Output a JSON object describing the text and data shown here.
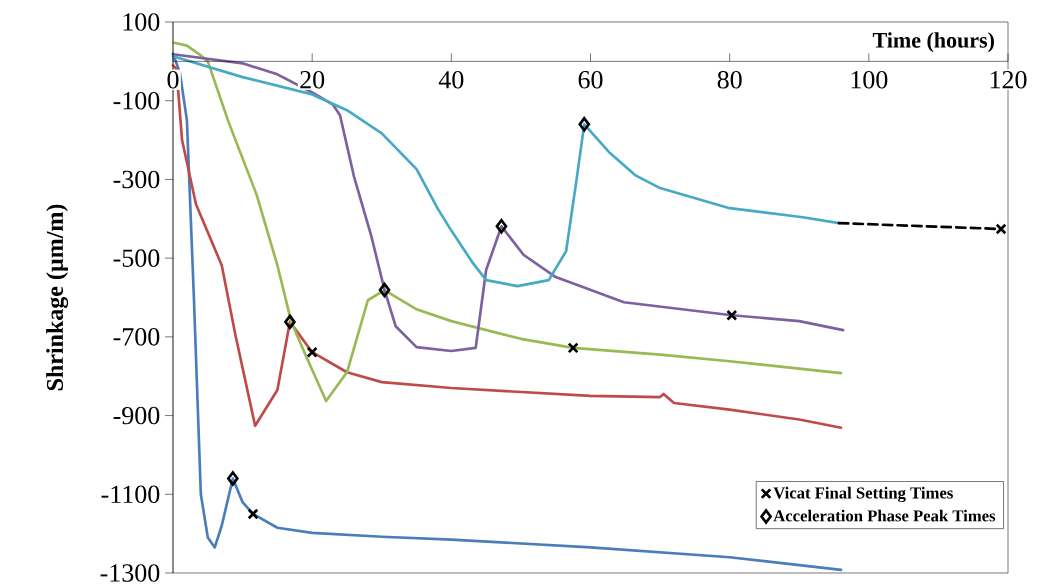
{
  "chart_data": {
    "type": "line",
    "xlabel": "Time (hours)",
    "ylabel": "Shrinkage (µm/m)",
    "xlim": [
      0,
      120
    ],
    "ylim": [
      -1300,
      100
    ],
    "xticks": [
      0,
      20,
      40,
      60,
      80,
      100,
      120
    ],
    "yticks": [
      100,
      -100,
      -300,
      -500,
      -700,
      -900,
      -1100,
      -1300
    ],
    "legend": "bottom right",
    "marker": "none",
    "series": [
      {
        "color": "#4a7ebb",
        "x": [
          0,
          1,
          2,
          3,
          4,
          5,
          6,
          7,
          8.6,
          10,
          11.5,
          15,
          20,
          30,
          40,
          60,
          80,
          96
        ],
        "values": [
          20,
          -30,
          -150,
          -600,
          -1100,
          -1210,
          -1235,
          -1180,
          -1060,
          -1120,
          -1150,
          -1185,
          -1198,
          -1208,
          -1215,
          -1235,
          -1260,
          -1292
        ]
      },
      {
        "color": "#be4b48",
        "x": [
          0,
          0.5,
          1.3,
          3.3,
          7,
          9,
          11.8,
          15,
          16.8,
          20,
          25,
          30,
          40,
          60,
          70,
          70.5,
          72,
          80,
          90,
          96
        ],
        "values": [
          -10,
          -20,
          -200,
          -363,
          -518,
          -698,
          -926,
          -835,
          -662,
          -739,
          -790,
          -815,
          -830,
          -850,
          -853,
          -845,
          -868,
          -885,
          -910,
          -931
        ]
      },
      {
        "color": "#98b954",
        "x": [
          0,
          2,
          4,
          5,
          8,
          12,
          15,
          17,
          19,
          22,
          25,
          28,
          30.4,
          35,
          40,
          50,
          57.5,
          70,
          80,
          96
        ],
        "values": [
          48,
          40,
          15,
          0,
          -155,
          -338,
          -518,
          -662,
          -744,
          -863,
          -790,
          -607,
          -581,
          -630,
          -660,
          -705,
          -728,
          -745,
          -762,
          -792
        ]
      },
      {
        "color": "#7d60a0",
        "x": [
          0,
          10,
          15,
          20,
          23,
          24,
          26,
          28.5,
          30.4,
          32,
          35,
          40,
          43.5,
          45,
          47.2,
          50.4,
          55,
          64.8,
          80.3,
          90,
          96.3
        ],
        "values": [
          18,
          -5,
          -33,
          -79,
          -110,
          -137,
          -292,
          -444,
          -581,
          -673,
          -726,
          -736,
          -728,
          -530,
          -419,
          -492,
          -548,
          -612,
          -645,
          -660,
          -683
        ]
      },
      {
        "color": "#46aac5",
        "x": [
          0,
          10,
          20,
          25,
          30,
          35,
          38,
          40,
          43,
          45,
          49.5,
          54,
          56.5,
          58,
          59.1,
          62.8,
          66.4,
          70,
          80,
          90.5,
          95.7
        ],
        "values": [
          13,
          -40,
          -84,
          -124,
          -183,
          -274,
          -373,
          -430,
          -510,
          -556,
          -571,
          -556,
          -482,
          -300,
          -160,
          -233,
          -289,
          -322,
          -373,
          -396,
          -411
        ]
      },
      {
        "color": "#000000",
        "line_style": "dashed",
        "x": [
          95.7,
          119
        ],
        "values": [
          -411,
          -426
        ]
      },
      {
        "type": "scatter",
        "name": "Vicat Final Setting Times",
        "marker": "cross",
        "color": "#000000",
        "x": [
          11.5,
          20,
          57.5,
          80.3,
          119
        ],
        "values": [
          -1150,
          -739,
          -728,
          -645,
          -426
        ]
      },
      {
        "type": "scatter",
        "name": "Acceleration Phase Peak Times",
        "marker": "diamond",
        "color": "#000000",
        "x": [
          8.6,
          16.8,
          30.4,
          47.2,
          59.1
        ],
        "values": [
          -1060,
          -662,
          -581,
          -419,
          -160
        ]
      }
    ]
  }
}
